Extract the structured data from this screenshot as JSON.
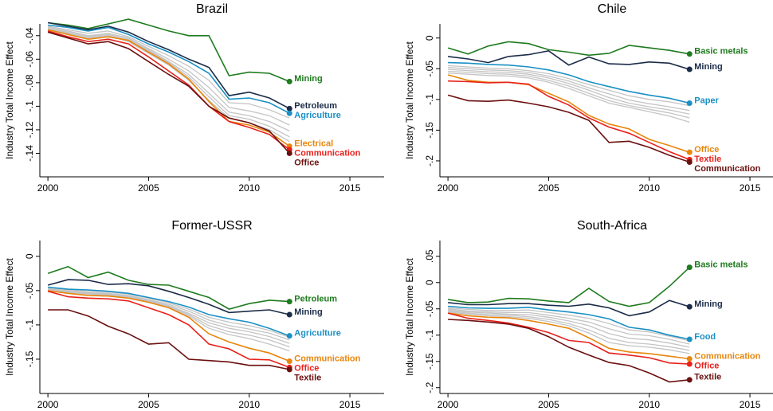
{
  "chart_data": [
    {
      "type": "line",
      "title": "Brazil",
      "ylabel": "Industry Total Income Effect",
      "x": [
        2000,
        2001,
        2002,
        2003,
        2004,
        2005,
        2006,
        2007,
        2008,
        2009,
        2010,
        2011,
        2012
      ],
      "xlim": [
        1999.6,
        2016.7
      ],
      "xticks": [
        2000,
        2005,
        2010,
        2015
      ],
      "ylim": [
        -0.16,
        -0.03
      ],
      "yticks": [
        {
          "value": -0.14,
          "label": "-.14"
        },
        {
          "value": -0.12,
          "label": "-.12"
        },
        {
          "value": -0.1,
          "label": "-.1"
        },
        {
          "value": -0.08,
          "label": "-.08"
        },
        {
          "value": -0.06,
          "label": "-.06"
        },
        {
          "value": -0.04,
          "label": "-.04"
        }
      ],
      "series": [
        {
          "color": "#c4c4c4",
          "values": [
            -0.032,
            -0.035,
            -0.038,
            -0.036,
            -0.041,
            -0.049,
            -0.057,
            -0.066,
            -0.078,
            -0.097,
            -0.098,
            -0.103,
            -0.11
          ]
        },
        {
          "color": "#c4c4c4",
          "values": [
            -0.033,
            -0.036,
            -0.04,
            -0.038,
            -0.042,
            -0.051,
            -0.06,
            -0.07,
            -0.084,
            -0.101,
            -0.104,
            -0.108,
            -0.116
          ]
        },
        {
          "color": "#c4c4c4",
          "values": [
            -0.034,
            -0.037,
            -0.041,
            -0.039,
            -0.043,
            -0.052,
            -0.062,
            -0.073,
            -0.089,
            -0.105,
            -0.108,
            -0.113,
            -0.121
          ]
        },
        {
          "color": "#c4c4c4",
          "values": [
            -0.034,
            -0.038,
            -0.042,
            -0.04,
            -0.044,
            -0.053,
            -0.063,
            -0.075,
            -0.092,
            -0.108,
            -0.111,
            -0.117,
            -0.126
          ]
        },
        {
          "color": "#c4c4c4",
          "values": [
            -0.035,
            -0.038,
            -0.042,
            -0.04,
            -0.045,
            -0.055,
            -0.065,
            -0.078,
            -0.095,
            -0.11,
            -0.114,
            -0.12,
            -0.13
          ]
        },
        {
          "name": "Mining",
          "color": "#1e7b1e",
          "values": [
            -0.029,
            -0.031,
            -0.034,
            -0.03,
            -0.026,
            -0.031,
            -0.036,
            -0.04,
            -0.04,
            -0.074,
            -0.071,
            -0.072,
            -0.079
          ]
        },
        {
          "name": "Petroleum",
          "color": "#1b2c48",
          "values": [
            -0.029,
            -0.032,
            -0.035,
            -0.032,
            -0.037,
            -0.045,
            -0.052,
            -0.06,
            -0.067,
            -0.091,
            -0.088,
            -0.093,
            -0.102
          ]
        },
        {
          "name": "Agriculture",
          "color": "#1a90c4",
          "values": [
            -0.031,
            -0.033,
            -0.036,
            -0.033,
            -0.039,
            -0.047,
            -0.054,
            -0.062,
            -0.072,
            -0.094,
            -0.093,
            -0.097,
            -0.106
          ]
        },
        {
          "name": "Electrical",
          "color": "#e8860c",
          "values": [
            -0.035,
            -0.039,
            -0.043,
            -0.041,
            -0.044,
            -0.054,
            -0.064,
            -0.077,
            -0.096,
            -0.113,
            -0.116,
            -0.122,
            -0.134
          ]
        },
        {
          "name": "Communication",
          "color": "#e8201a",
          "values": [
            -0.036,
            -0.041,
            -0.045,
            -0.043,
            -0.047,
            -0.058,
            -0.07,
            -0.082,
            -0.1,
            -0.113,
            -0.118,
            -0.124,
            -0.137
          ]
        },
        {
          "name": "Office",
          "color": "#6b0f0f",
          "values": [
            -0.037,
            -0.042,
            -0.047,
            -0.045,
            -0.051,
            -0.062,
            -0.073,
            -0.083,
            -0.1,
            -0.11,
            -0.114,
            -0.121,
            -0.14
          ]
        }
      ]
    },
    {
      "type": "line",
      "title": "Chile",
      "ylabel": "Industry Total Income Effect",
      "x": [
        2000,
        2001,
        2002,
        2003,
        2004,
        2005,
        2006,
        2007,
        2008,
        2009,
        2010,
        2011,
        2012
      ],
      "xlim": [
        1999.6,
        2016.7
      ],
      "xticks": [
        2000,
        2005,
        2010,
        2015
      ],
      "ylim": [
        -0.226,
        0.023
      ],
      "yticks": [
        0,
        {
          "value": -0.05,
          "label": "-.05"
        },
        {
          "value": -0.1,
          "label": "-.1"
        },
        {
          "value": -0.15,
          "label": "-.15"
        },
        {
          "value": -0.2,
          "label": "-.2"
        }
      ],
      "series": [
        {
          "color": "#c4c4c4",
          "values": [
            -0.045,
            -0.047,
            -0.049,
            -0.05,
            -0.053,
            -0.058,
            -0.066,
            -0.076,
            -0.085,
            -0.094,
            -0.1,
            -0.104,
            -0.11
          ]
        },
        {
          "color": "#c4c4c4",
          "values": [
            -0.048,
            -0.05,
            -0.052,
            -0.053,
            -0.056,
            -0.062,
            -0.07,
            -0.081,
            -0.091,
            -0.101,
            -0.107,
            -0.112,
            -0.118
          ]
        },
        {
          "color": "#c4c4c4",
          "values": [
            -0.051,
            -0.053,
            -0.055,
            -0.056,
            -0.059,
            -0.065,
            -0.074,
            -0.085,
            -0.097,
            -0.106,
            -0.112,
            -0.117,
            -0.124
          ]
        },
        {
          "color": "#c4c4c4",
          "values": [
            -0.054,
            -0.056,
            -0.058,
            -0.059,
            -0.062,
            -0.069,
            -0.078,
            -0.09,
            -0.102,
            -0.11,
            -0.116,
            -0.122,
            -0.13
          ]
        },
        {
          "color": "#c4c4c4",
          "values": [
            -0.057,
            -0.059,
            -0.061,
            -0.062,
            -0.065,
            -0.072,
            -0.082,
            -0.094,
            -0.106,
            -0.113,
            -0.12,
            -0.127,
            -0.137
          ]
        },
        {
          "name": "Basic metals",
          "color": "#1e7b1e",
          "values": [
            -0.016,
            -0.026,
            -0.013,
            -0.006,
            -0.009,
            -0.019,
            -0.023,
            -0.028,
            -0.025,
            -0.012,
            -0.016,
            -0.02,
            -0.026
          ]
        },
        {
          "name": "Mining",
          "color": "#1b2c48",
          "values": [
            -0.03,
            -0.034,
            -0.04,
            -0.03,
            -0.027,
            -0.021,
            -0.044,
            -0.031,
            -0.042,
            -0.043,
            -0.039,
            -0.041,
            -0.051
          ]
        },
        {
          "name": "Paper",
          "color": "#1a90c4",
          "values": [
            -0.04,
            -0.041,
            -0.043,
            -0.044,
            -0.047,
            -0.052,
            -0.06,
            -0.071,
            -0.079,
            -0.087,
            -0.093,
            -0.098,
            -0.106
          ]
        },
        {
          "name": "Office",
          "color": "#e8860c",
          "values": [
            -0.06,
            -0.069,
            -0.072,
            -0.072,
            -0.076,
            -0.09,
            -0.104,
            -0.126,
            -0.14,
            -0.148,
            -0.165,
            -0.175,
            -0.186
          ]
        },
        {
          "name": "Textile",
          "color": "#e8201a",
          "values": [
            -0.07,
            -0.071,
            -0.073,
            -0.072,
            -0.075,
            -0.095,
            -0.109,
            -0.13,
            -0.145,
            -0.155,
            -0.17,
            -0.185,
            -0.198
          ]
        },
        {
          "name": "Communication",
          "color": "#6b0f0f",
          "values": [
            -0.093,
            -0.102,
            -0.103,
            -0.101,
            -0.106,
            -0.112,
            -0.121,
            -0.134,
            -0.17,
            -0.168,
            -0.178,
            -0.191,
            -0.202
          ]
        }
      ]
    },
    {
      "type": "line",
      "title": "Former-USSR",
      "ylabel": "Industry Total Income Effect",
      "x": [
        2000,
        2001,
        2002,
        2003,
        2004,
        2005,
        2006,
        2007,
        2008,
        2009,
        2010,
        2011,
        2012
      ],
      "xlim": [
        1999.6,
        2016.7
      ],
      "xticks": [
        2000,
        2005,
        2010,
        2015
      ],
      "ylim": [
        -0.2,
        0.023
      ],
      "yticks": [
        0,
        {
          "value": -0.05,
          "label": "-.05"
        },
        {
          "value": -0.1,
          "label": "-.1"
        },
        {
          "value": -0.15,
          "label": "-.15"
        }
      ],
      "series": [
        {
          "color": "#c4c4c4",
          "values": [
            -0.046,
            -0.049,
            -0.05,
            -0.052,
            -0.055,
            -0.061,
            -0.068,
            -0.077,
            -0.089,
            -0.096,
            -0.101,
            -0.108,
            -0.118
          ]
        },
        {
          "color": "#c4c4c4",
          "values": [
            -0.047,
            -0.05,
            -0.052,
            -0.054,
            -0.057,
            -0.063,
            -0.07,
            -0.08,
            -0.093,
            -0.101,
            -0.106,
            -0.112,
            -0.122
          ]
        },
        {
          "color": "#c4c4c4",
          "values": [
            -0.048,
            -0.051,
            -0.053,
            -0.055,
            -0.058,
            -0.064,
            -0.072,
            -0.083,
            -0.097,
            -0.105,
            -0.11,
            -0.117,
            -0.127
          ]
        },
        {
          "color": "#c4c4c4",
          "values": [
            -0.049,
            -0.052,
            -0.054,
            -0.056,
            -0.059,
            -0.065,
            -0.073,
            -0.085,
            -0.101,
            -0.11,
            -0.115,
            -0.122,
            -0.132
          ]
        },
        {
          "color": "#c4c4c4",
          "values": [
            -0.049,
            -0.053,
            -0.055,
            -0.057,
            -0.06,
            -0.066,
            -0.074,
            -0.087,
            -0.105,
            -0.114,
            -0.12,
            -0.128,
            -0.138
          ]
        },
        {
          "name": "Petroleum",
          "color": "#1e7b1e",
          "values": [
            -0.025,
            -0.015,
            -0.031,
            -0.023,
            -0.035,
            -0.041,
            -0.042,
            -0.051,
            -0.06,
            -0.077,
            -0.069,
            -0.064,
            -0.066
          ]
        },
        {
          "name": "Mining",
          "color": "#1b2c48",
          "values": [
            -0.042,
            -0.034,
            -0.035,
            -0.041,
            -0.04,
            -0.043,
            -0.051,
            -0.06,
            -0.07,
            -0.082,
            -0.08,
            -0.078,
            -0.085
          ]
        },
        {
          "name": "Agriculture",
          "color": "#1a90c4",
          "values": [
            -0.045,
            -0.048,
            -0.049,
            -0.051,
            -0.054,
            -0.06,
            -0.066,
            -0.074,
            -0.085,
            -0.091,
            -0.096,
            -0.105,
            -0.116
          ]
        },
        {
          "name": "Communication",
          "color": "#e8860c",
          "values": [
            -0.05,
            -0.054,
            -0.057,
            -0.058,
            -0.061,
            -0.067,
            -0.075,
            -0.089,
            -0.113,
            -0.125,
            -0.134,
            -0.141,
            -0.153
          ]
        },
        {
          "name": "Office",
          "color": "#e8201a",
          "values": [
            -0.051,
            -0.059,
            -0.061,
            -0.062,
            -0.065,
            -0.075,
            -0.085,
            -0.1,
            -0.128,
            -0.135,
            -0.15,
            -0.151,
            -0.162
          ]
        },
        {
          "name": "Textile",
          "color": "#6b0f0f",
          "values": [
            -0.078,
            -0.078,
            -0.087,
            -0.102,
            -0.113,
            -0.128,
            -0.126,
            -0.15,
            -0.152,
            -0.154,
            -0.159,
            -0.159,
            -0.165
          ]
        }
      ]
    },
    {
      "type": "line",
      "title": "South-Africa",
      "ylabel": "Industry Total Income Effect",
      "x": [
        2000,
        2001,
        2002,
        2003,
        2004,
        2005,
        2006,
        2007,
        2008,
        2009,
        2010,
        2011,
        2012
      ],
      "xlim": [
        1999.6,
        2016.7
      ],
      "xticks": [
        2000,
        2005,
        2010,
        2015
      ],
      "ylim": [
        -0.211,
        0.08
      ],
      "yticks": [
        {
          "value": 0.05,
          "label": ".05"
        },
        0,
        {
          "value": -0.05,
          "label": "-.05"
        },
        {
          "value": -0.1,
          "label": "-.1"
        },
        {
          "value": -0.15,
          "label": "-.15"
        },
        {
          "value": -0.2,
          "label": "-.2"
        }
      ],
      "series": [
        {
          "color": "#c4c4c4",
          "values": [
            -0.048,
            -0.051,
            -0.053,
            -0.053,
            -0.052,
            -0.057,
            -0.062,
            -0.068,
            -0.078,
            -0.09,
            -0.094,
            -0.102,
            -0.111
          ]
        },
        {
          "color": "#c4c4c4",
          "values": [
            -0.05,
            -0.054,
            -0.056,
            -0.057,
            -0.057,
            -0.062,
            -0.068,
            -0.075,
            -0.088,
            -0.098,
            -0.101,
            -0.108,
            -0.117
          ]
        },
        {
          "color": "#c4c4c4",
          "values": [
            -0.052,
            -0.056,
            -0.058,
            -0.06,
            -0.061,
            -0.066,
            -0.073,
            -0.082,
            -0.097,
            -0.106,
            -0.109,
            -0.115,
            -0.123
          ]
        },
        {
          "color": "#c4c4c4",
          "values": [
            -0.054,
            -0.058,
            -0.061,
            -0.062,
            -0.065,
            -0.07,
            -0.078,
            -0.09,
            -0.106,
            -0.114,
            -0.117,
            -0.122,
            -0.129
          ]
        },
        {
          "color": "#c4c4c4",
          "values": [
            -0.056,
            -0.06,
            -0.063,
            -0.065,
            -0.068,
            -0.074,
            -0.082,
            -0.096,
            -0.114,
            -0.12,
            -0.123,
            -0.128,
            -0.135
          ]
        },
        {
          "name": "Basic metals",
          "color": "#1e7b1e",
          "values": [
            -0.032,
            -0.038,
            -0.037,
            -0.03,
            -0.031,
            -0.035,
            -0.038,
            -0.011,
            -0.036,
            -0.045,
            -0.038,
            -0.007,
            0.029
          ]
        },
        {
          "name": "Mining",
          "color": "#1b2c48",
          "values": [
            -0.038,
            -0.042,
            -0.042,
            -0.04,
            -0.04,
            -0.043,
            -0.045,
            -0.041,
            -0.048,
            -0.063,
            -0.056,
            -0.034,
            -0.046
          ]
        },
        {
          "name": "Food",
          "color": "#1a90c4",
          "values": [
            -0.045,
            -0.048,
            -0.049,
            -0.049,
            -0.047,
            -0.052,
            -0.056,
            -0.061,
            -0.069,
            -0.085,
            -0.09,
            -0.1,
            -0.108
          ]
        },
        {
          "name": "Communication",
          "color": "#e8860c",
          "values": [
            -0.058,
            -0.063,
            -0.066,
            -0.067,
            -0.072,
            -0.079,
            -0.087,
            -0.105,
            -0.125,
            -0.132,
            -0.135,
            -0.14,
            -0.145
          ]
        },
        {
          "name": "Office",
          "color": "#e8201a",
          "values": [
            -0.058,
            -0.068,
            -0.072,
            -0.077,
            -0.085,
            -0.095,
            -0.11,
            -0.114,
            -0.134,
            -0.138,
            -0.143,
            -0.153,
            -0.155
          ]
        },
        {
          "name": "Textile",
          "color": "#6b0f0f",
          "values": [
            -0.07,
            -0.072,
            -0.075,
            -0.079,
            -0.087,
            -0.103,
            -0.123,
            -0.138,
            -0.152,
            -0.158,
            -0.172,
            -0.189,
            -0.185
          ]
        }
      ]
    }
  ]
}
